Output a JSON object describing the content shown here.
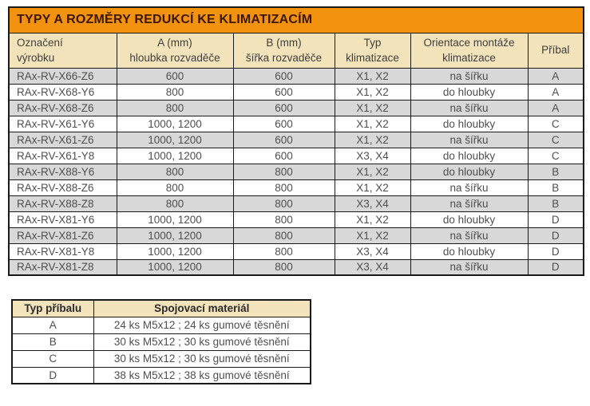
{
  "colors": {
    "title_bg": "#F3920E",
    "header_bg": "#F3E3BB",
    "row_alt_bg": "#D8D8D8",
    "border": "#1A1A1A",
    "title_text": "#3C1800",
    "header_text": "#3F3F3F",
    "body_text": "#4F4F4F"
  },
  "main_table": {
    "title": "TYPY A ROZMĚRY REDUKCÍ KE KLIMATIZACÍM",
    "headers": [
      "Označení\nvýrobku",
      "A (mm)\nhloubka rozvaděče",
      "B (mm)\nšířka rozvaděče",
      "Typ\nklimatizace",
      "Orientace montáže\nklimatizace",
      "Příbal"
    ],
    "rows": [
      [
        "RAx-RV-X66-Z6",
        "600",
        "600",
        "X1, X2",
        "na šířku",
        "A"
      ],
      [
        "RAx-RV-X68-Y6",
        "800",
        "600",
        "X1, X2",
        "do hloubky",
        "A"
      ],
      [
        "RAx-RV-X68-Z6",
        "800",
        "600",
        "X1, X2",
        "na šířku",
        "A"
      ],
      [
        "RAx-RV-X61-Y6",
        "1000, 1200",
        "600",
        "X1, X2",
        "do hloubky",
        "C"
      ],
      [
        "RAx-RV-X61-Z6",
        "1000, 1200",
        "600",
        "X1, X2",
        "na šířku",
        "C"
      ],
      [
        "RAx-RV-X61-Y8",
        "1000, 1200",
        "600",
        "X3, X4",
        "do hloubky",
        "C"
      ],
      [
        "RAx-RV-X88-Y6",
        "800",
        "800",
        "X1, X2",
        "do hloubky",
        "B"
      ],
      [
        "RAx-RV-X88-Z6",
        "800",
        "800",
        "X1, X2",
        "na šířku",
        "B"
      ],
      [
        "RAx-RV-X88-Z8",
        "800",
        "800",
        "X3, X4",
        "na šířku",
        "B"
      ],
      [
        "RAx-RV-X81-Y6",
        "1000, 1200",
        "800",
        "X1, X2",
        "do hloubky",
        "D"
      ],
      [
        "RAx-RV-X81-Z6",
        "1000, 1200",
        "800",
        "X1, X2",
        "na šířku",
        "D"
      ],
      [
        "RAx-RV-X81-Y8",
        "1000, 1200",
        "800",
        "X3, X4",
        "do hloubky",
        "D"
      ],
      [
        "RAx-RV-X81-Z8",
        "1000, 1200",
        "800",
        "X3, X4",
        "na šířku",
        "D"
      ]
    ]
  },
  "accessory_table": {
    "headers": [
      "Typ příbalu",
      "Spojovací materiál"
    ],
    "rows": [
      [
        "A",
        "24 ks M5x12 ; 24 ks gumové těsnění"
      ],
      [
        "B",
        "30 ks M5x12 ; 30 ks gumové těsnění"
      ],
      [
        "C",
        "30 ks M5x12 ; 30 ks gumové těsnění"
      ],
      [
        "D",
        "38 ks M5x12 ; 38 ks gumové těsnění"
      ]
    ]
  }
}
